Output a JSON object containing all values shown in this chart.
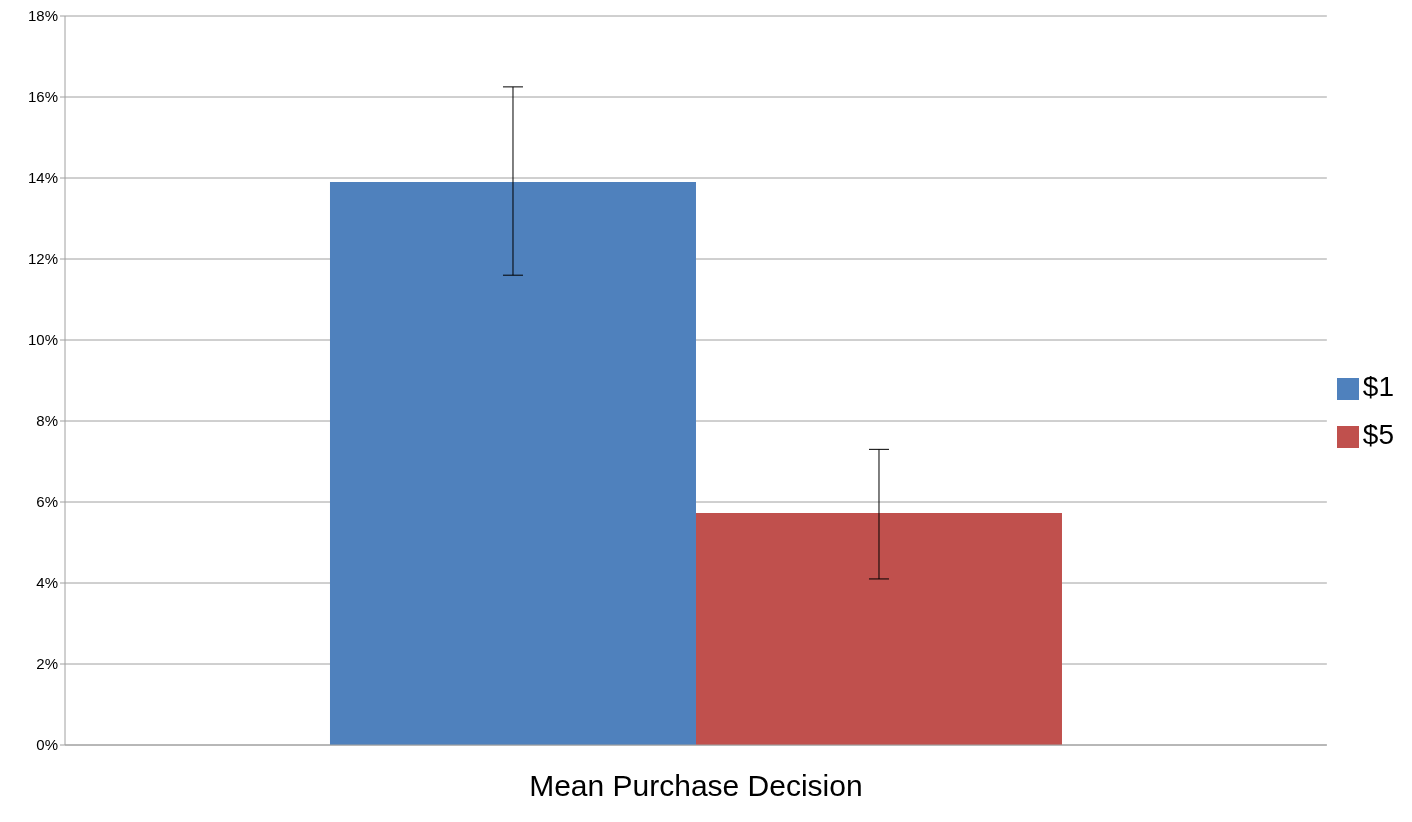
{
  "chart_data": {
    "type": "bar",
    "categories": [
      "Mean Purchase Decision"
    ],
    "series": [
      {
        "name": "$1",
        "color": "#4f81bd",
        "values": [
          13.9
        ],
        "errors": [
          [
            11.6,
            16.25
          ]
        ]
      },
      {
        "name": "$5",
        "color": "#c0504d",
        "values": [
          5.73
        ],
        "errors": [
          [
            4.1,
            7.3
          ]
        ]
      }
    ],
    "ylim": [
      0,
      18
    ],
    "yticks": [
      {
        "value": 0,
        "label": "0%"
      },
      {
        "value": 2,
        "label": "2%"
      },
      {
        "value": 4,
        "label": "4%"
      },
      {
        "value": 6,
        "label": "6%"
      },
      {
        "value": 8,
        "label": "8%"
      },
      {
        "value": 10,
        "label": "10%"
      },
      {
        "value": 12,
        "label": "12%"
      },
      {
        "value": 14,
        "label": "14%"
      },
      {
        "value": 16,
        "label": "16%"
      },
      {
        "value": 18,
        "label": "18%"
      }
    ],
    "grid": "y",
    "legend": "right"
  }
}
